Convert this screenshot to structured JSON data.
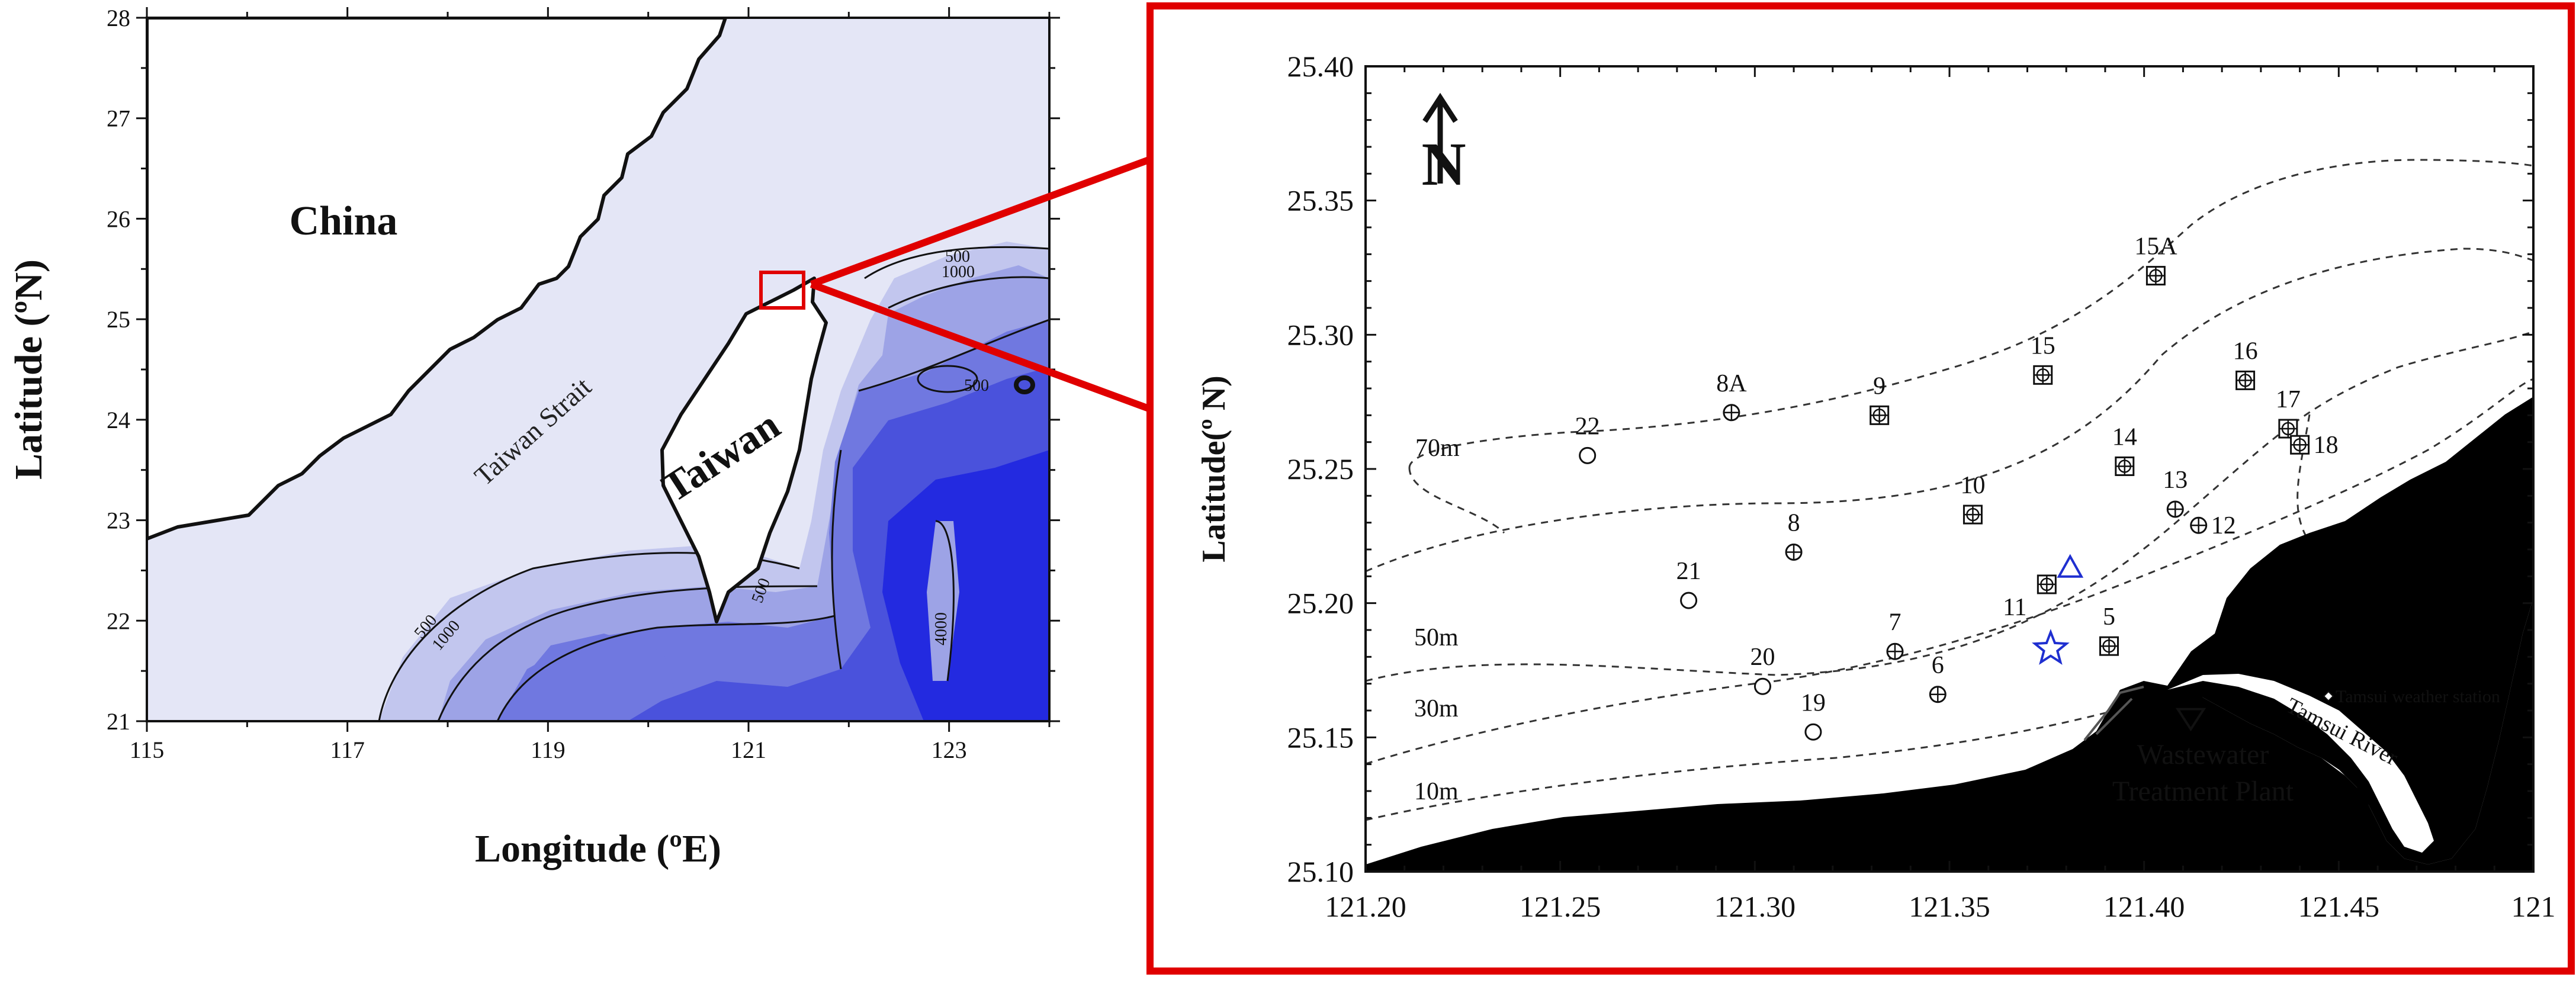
{
  "left_map": {
    "x_axis": {
      "label": "Longitude (ºE)",
      "ticks": [
        "115",
        "117",
        "119",
        "121",
        "123"
      ],
      "range": [
        115,
        124
      ]
    },
    "y_axis": {
      "label": "Latitude (ºN)",
      "ticks": [
        "21",
        "22",
        "23",
        "24",
        "25",
        "26",
        "27",
        "28"
      ],
      "range": [
        21,
        28
      ]
    },
    "labels": {
      "china": "China",
      "taiwan": "Taiwan",
      "strait": "Taiwan Strait"
    },
    "contour_labels": [
      "500",
      "1000",
      "500",
      "500",
      "1000",
      "500",
      "4000"
    ],
    "colors": {
      "sea_light": "#e4e6f6",
      "deep_1": "#c2c6ee",
      "deep_2": "#9da3e6",
      "deep_3": "#7078e0",
      "deep_4": "#4a52dc",
      "deep_5": "#232ae0",
      "inset_box": "#e00000"
    }
  },
  "inset_map": {
    "x_axis": {
      "ticks": [
        "121.20",
        "121.25",
        "121.30",
        "121.35",
        "121.40",
        "121.45",
        "121"
      ],
      "range": [
        121.2,
        121.5
      ]
    },
    "y_axis": {
      "label": "Latitude(º N)",
      "ticks": [
        "25.10",
        "25.15",
        "25.20",
        "25.25",
        "25.30",
        "25.35",
        "25.40"
      ],
      "range": [
        25.1,
        25.4
      ]
    },
    "north_label": "N",
    "depth_labels": [
      "70m",
      "50m",
      "30m",
      "10m"
    ],
    "stations": [
      {
        "id": "15A",
        "lon": 121.403,
        "lat": 25.322,
        "symbol": "box-cross"
      },
      {
        "id": "16",
        "lon": 121.426,
        "lat": 25.283,
        "symbol": "box-cross"
      },
      {
        "id": "15",
        "lon": 121.374,
        "lat": 25.285,
        "symbol": "box-cross"
      },
      {
        "id": "9",
        "lon": 121.332,
        "lat": 25.27,
        "symbol": "box-cross"
      },
      {
        "id": "8A",
        "lon": 121.294,
        "lat": 25.271,
        "symbol": "circle-cross"
      },
      {
        "id": "22",
        "lon": 121.257,
        "lat": 25.255,
        "symbol": "circle"
      },
      {
        "id": "17",
        "lon": 121.437,
        "lat": 25.265,
        "symbol": "box-cross"
      },
      {
        "id": "18",
        "lon": 121.44,
        "lat": 25.259,
        "symbol": "box-cross"
      },
      {
        "id": "14",
        "lon": 121.395,
        "lat": 25.251,
        "symbol": "box-cross"
      },
      {
        "id": "13",
        "lon": 121.408,
        "lat": 25.235,
        "symbol": "circle-cross"
      },
      {
        "id": "12",
        "lon": 121.414,
        "lat": 25.229,
        "symbol": "circle-cross"
      },
      {
        "id": "10",
        "lon": 121.356,
        "lat": 25.233,
        "symbol": "box-cross"
      },
      {
        "id": "8",
        "lon": 121.31,
        "lat": 25.219,
        "symbol": "circle-cross"
      },
      {
        "id": "21",
        "lon": 121.283,
        "lat": 25.201,
        "symbol": "circle"
      },
      {
        "id": "11",
        "lon": 121.375,
        "lat": 25.207,
        "symbol": "box-cross"
      },
      {
        "id": "5",
        "lon": 121.391,
        "lat": 25.184,
        "symbol": "box-cross"
      },
      {
        "id": "7",
        "lon": 121.336,
        "lat": 25.182,
        "symbol": "circle-cross"
      },
      {
        "id": "6",
        "lon": 121.347,
        "lat": 25.166,
        "symbol": "circle-cross"
      },
      {
        "id": "20",
        "lon": 121.302,
        "lat": 25.169,
        "symbol": "circle"
      },
      {
        "id": "19",
        "lon": 121.315,
        "lat": 25.152,
        "symbol": "circle"
      }
    ],
    "markers": {
      "triangle": {
        "lon": 121.381,
        "lat": 25.213
      },
      "star": {
        "lon": 121.376,
        "lat": 25.183
      },
      "plant_marker": {
        "lon": 121.412,
        "lat": 25.157
      }
    },
    "plant_label": [
      "Wastewater",
      "Treatment Plant"
    ],
    "river_label": "Tamsui River",
    "weather_label": "Tamsui weather station",
    "colors": {
      "land": "#000000",
      "marker_blue": "#1f2fd0",
      "frame": "#e00000"
    }
  }
}
